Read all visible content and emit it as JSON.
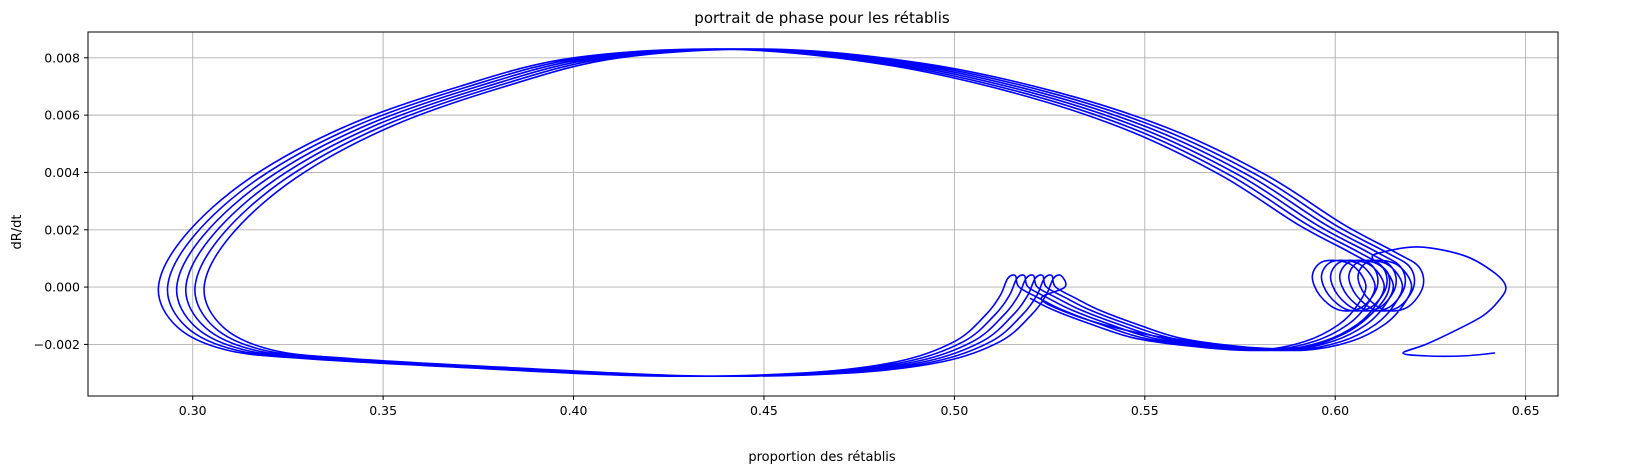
{
  "chart_data": {
    "type": "line",
    "title": "portrait de phase pour les rétablis",
    "xlabel": "proportion des rétablis",
    "ylabel": "dR/dt",
    "xlim": [
      0.2725,
      0.6585
    ],
    "ylim": [
      -0.0038,
      0.0089
    ],
    "xticks": [
      0.3,
      0.35,
      0.4,
      0.45,
      0.5,
      0.55,
      0.6,
      0.65
    ],
    "xtick_labels": [
      "0.30",
      "0.35",
      "0.40",
      "0.45",
      "0.50",
      "0.55",
      "0.60",
      "0.65"
    ],
    "yticks": [
      -0.002,
      0.0,
      0.002,
      0.004,
      0.006,
      0.008
    ],
    "ytick_labels": [
      "−0.002",
      "0.000",
      "0.002",
      "0.004",
      "0.006",
      "0.008"
    ],
    "grid": true,
    "legend": "none",
    "series": [
      {
        "color": "#0000ff",
        "start_point": [
          0.513,
          0.0
        ],
        "loops": 6,
        "x_shift_per_loop": 0.0024,
        "spiral_start": [
          0.513,
          0.0
        ],
        "spiral_shift_per_loop": 0.0024,
        "cycle_vertices": [
          [
            0.52,
            -0.0004
          ],
          [
            0.526,
            -0.0008
          ],
          [
            0.536,
            -0.0013
          ],
          [
            0.548,
            -0.0018
          ],
          [
            0.565,
            -0.0021
          ],
          [
            0.58,
            -0.0022
          ],
          [
            0.592,
            -0.0019
          ],
          [
            0.601,
            -0.0013
          ],
          [
            0.606,
            -0.0006
          ],
          [
            0.608,
            0.0001
          ],
          [
            0.604,
            0.0008
          ],
          [
            0.597,
            0.0009
          ],
          [
            0.594,
            0.0004
          ],
          [
            0.596,
            -0.0003
          ],
          [
            0.601,
            -0.0008
          ],
          [
            0.607,
            -0.0007
          ],
          [
            0.611,
            0.0
          ],
          [
            0.61,
            0.0007
          ],
          [
            0.604,
            0.0012
          ],
          [
            0.59,
            0.0022
          ],
          [
            0.57,
            0.0039
          ],
          [
            0.545,
            0.0055
          ],
          [
            0.515,
            0.0068
          ],
          [
            0.48,
            0.0078
          ],
          [
            0.44,
            0.0083
          ],
          [
            0.4,
            0.008
          ],
          [
            0.37,
            0.007
          ],
          [
            0.34,
            0.0056
          ],
          [
            0.315,
            0.0038
          ],
          [
            0.298,
            0.0018
          ],
          [
            0.291,
            0.0
          ],
          [
            0.296,
            -0.0014
          ],
          [
            0.309,
            -0.0022
          ],
          [
            0.33,
            -0.0025
          ],
          [
            0.37,
            -0.0028
          ],
          [
            0.42,
            -0.0031
          ],
          [
            0.46,
            -0.003
          ],
          [
            0.485,
            -0.0026
          ],
          [
            0.5,
            -0.0019
          ],
          [
            0.508,
            -0.001
          ],
          [
            0.512,
            -0.0003
          ],
          [
            0.514,
            0.0003
          ],
          [
            0.516,
            0.0004
          ],
          [
            0.517,
            0.0
          ]
        ],
        "tail": [
          [
            0.521,
            -0.0004
          ],
          [
            0.528,
            -0.0009
          ],
          [
            0.54,
            -0.0014
          ],
          [
            0.555,
            -0.0018
          ],
          [
            0.575,
            -0.0021
          ],
          [
            0.59,
            -0.0021
          ],
          [
            0.601,
            -0.0016
          ],
          [
            0.608,
            -0.0009
          ],
          [
            0.612,
            -0.0002
          ],
          [
            0.612,
            0.0005
          ],
          [
            0.608,
            0.001
          ],
          [
            0.61,
            0.0012
          ],
          [
            0.62,
            0.0014
          ],
          [
            0.632,
            0.0011
          ],
          [
            0.64,
            0.0005
          ],
          [
            0.643,
            0.0
          ],
          [
            0.641,
            -0.0005
          ],
          [
            0.637,
            -0.001
          ],
          [
            0.63,
            -0.0015
          ],
          [
            0.622,
            -0.002
          ],
          [
            0.616,
            -0.0023
          ],
          [
            0.622,
            -0.0024
          ],
          [
            0.632,
            -0.0024
          ],
          [
            0.64,
            -0.0023
          ]
        ]
      }
    ]
  }
}
